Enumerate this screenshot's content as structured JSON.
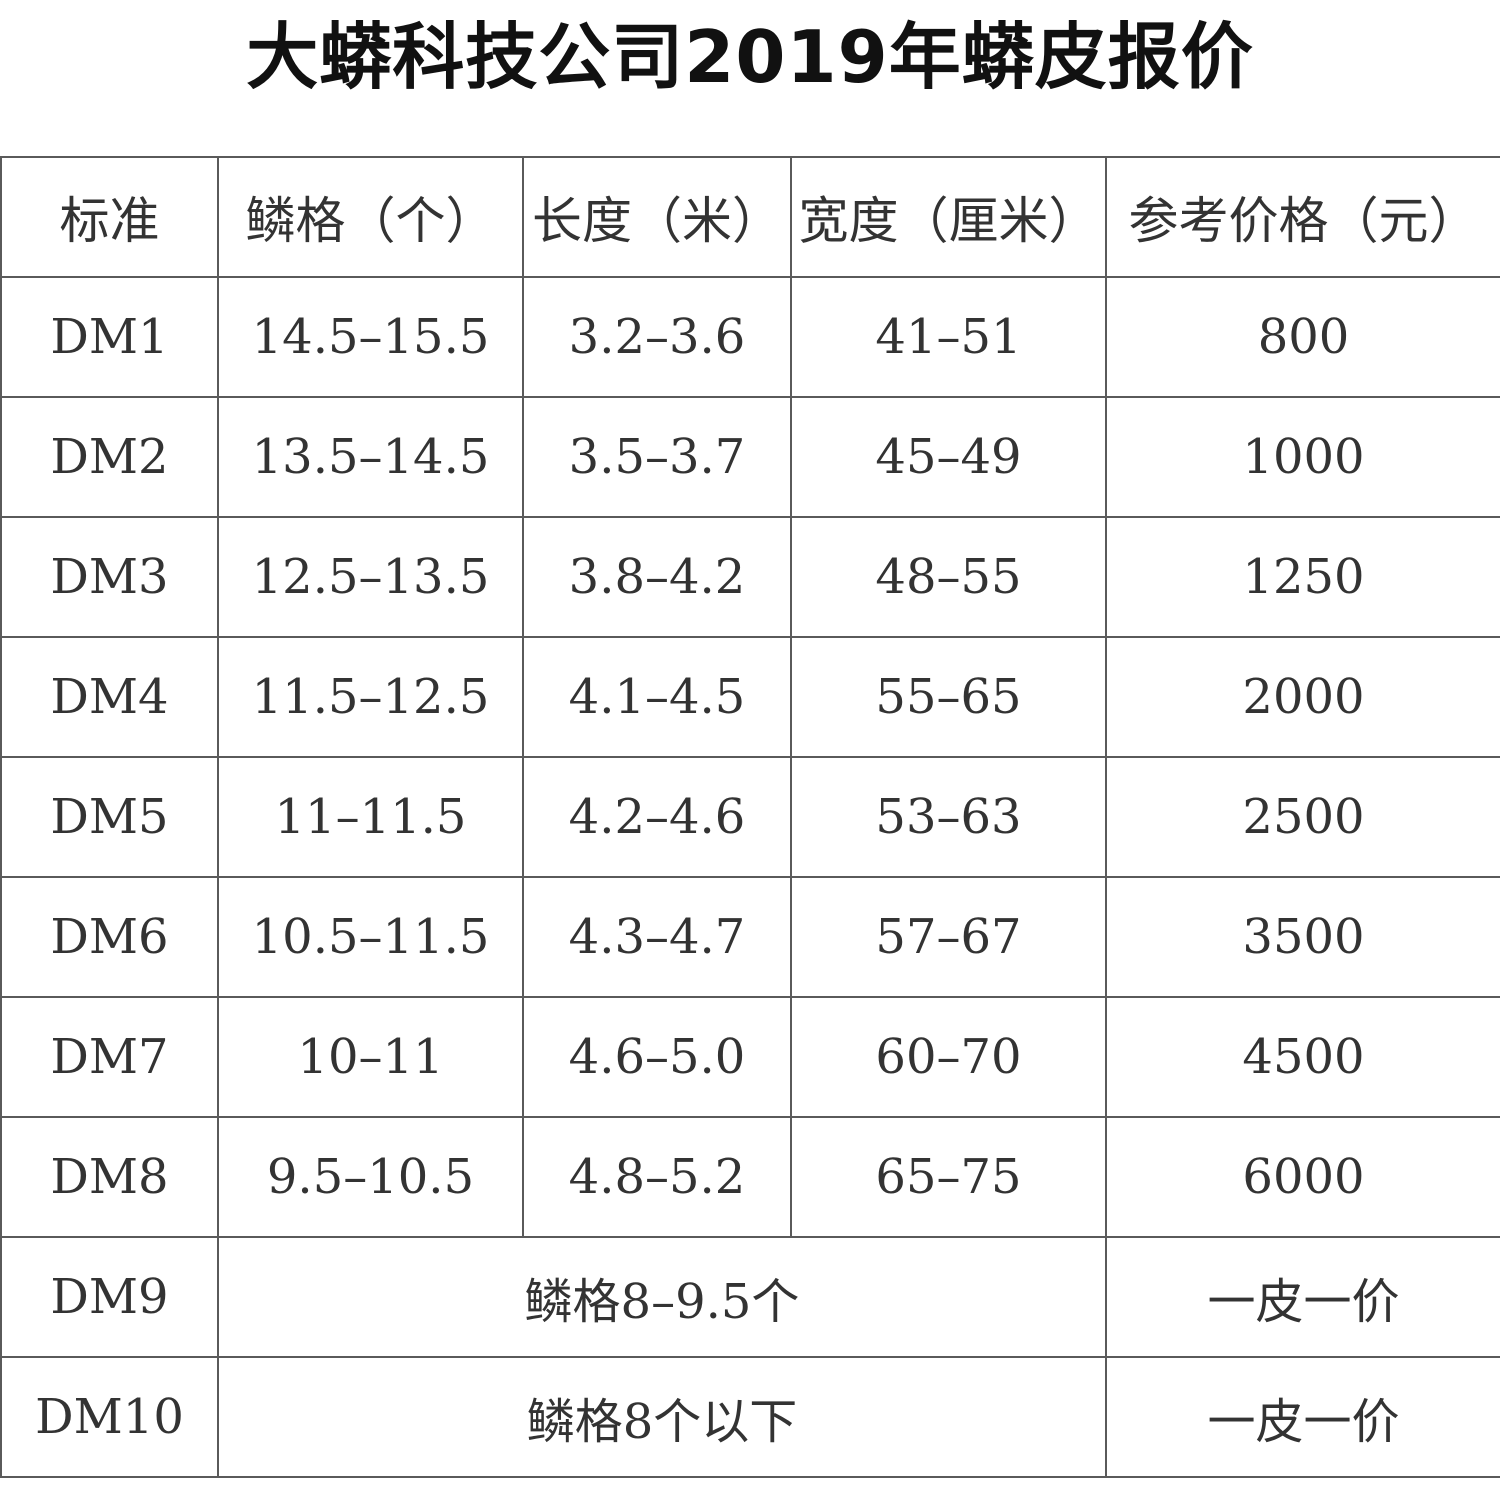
{
  "title": "大蟒科技公司2019年蟒皮报价",
  "table": {
    "headers": [
      "标准",
      "鳞格（个）",
      "长度（米）",
      "宽度（厘米）",
      "参考价格（元）"
    ],
    "rows": [
      [
        "DM1",
        "14.5–15.5",
        "3.2–3.6",
        "41–51",
        "800"
      ],
      [
        "DM2",
        "13.5–14.5",
        "3.5–3.7",
        "45–49",
        "1000"
      ],
      [
        "DM3",
        "12.5–13.5",
        "3.8–4.2",
        "48–55",
        "1250"
      ],
      [
        "DM4",
        "11.5–12.5",
        "4.1–4.5",
        "55–65",
        "2000"
      ],
      [
        "DM5",
        "11–11.5",
        "4.2–4.6",
        "53–63",
        "2500"
      ],
      [
        "DM6",
        "10.5–11.5",
        "4.3–4.7",
        "57–67",
        "3500"
      ],
      [
        "DM7",
        "10–11",
        "4.6–5.0",
        "60–70",
        "4500"
      ],
      [
        "DM8",
        "9.5–10.5",
        "4.8–5.2",
        "65–75",
        "6000"
      ]
    ],
    "merged_rows": [
      [
        "DM9",
        "鳞格8–9.5个",
        "一皮一价"
      ],
      [
        "DM10",
        "鳞格8个以下",
        "一皮一价"
      ]
    ]
  }
}
